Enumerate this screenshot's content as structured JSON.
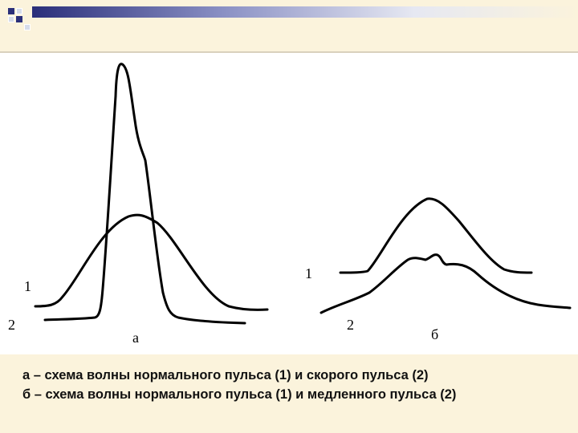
{
  "figure": {
    "panel_a": {
      "curve_label_1": "1",
      "curve_label_2": "2",
      "panel_label": "а"
    },
    "panel_b": {
      "curve_label_1": "1",
      "curve_label_2": "2",
      "panel_label": "б"
    }
  },
  "caption": {
    "line1": "а – схема волны нормального пульса (1) и скорого пульса (2)",
    "line2": "б – схема волны нормального пульса (1) и медленного пульса (2)"
  },
  "colors": {
    "background": "#fbf3dc",
    "accent_dark": "#2a2f7a",
    "curve": "#000000"
  }
}
